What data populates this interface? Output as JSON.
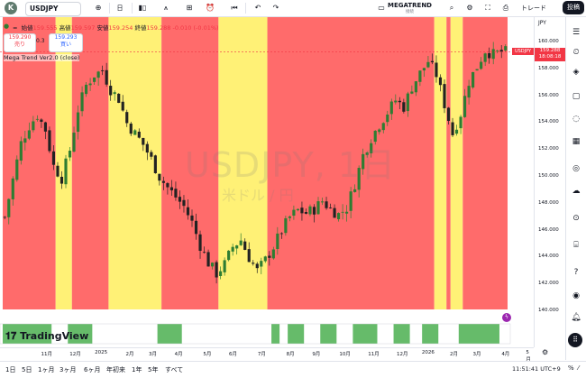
{
  "toolbar": {
    "logo_letter": "K",
    "symbol": "USDJPY",
    "timeframe": "日",
    "brand": "MEGATREND",
    "brand_sub": "接続",
    "trade": "トレード",
    "post": "投稿"
  },
  "legend": {
    "symbol_dot": "=",
    "open_label": "始値",
    "open": "159.555",
    "high_label": "高値",
    "high": "159.597",
    "low_label": "安値",
    "low": "159.254",
    "close_label": "終値",
    "close": "159.288",
    "change": "-0.010 (-0.01%)",
    "sell_price": "159.290",
    "sell_label": "売り",
    "spread": "0.3",
    "buy_price": "159.293",
    "buy_label": "買い",
    "indicator": "Mega Trend Ver2.0 (close)"
  },
  "watermark": {
    "main": "USDJPY, 1日",
    "sub": "米ドル / 円"
  },
  "price_axis": {
    "currency": "JPY",
    "ticks": [
      "160.000",
      "158.000",
      "156.000",
      "154.000",
      "152.000",
      "150.000",
      "148.000",
      "146.000",
      "144.000",
      "142.000",
      "140.000"
    ],
    "last_symbol": "USDJPY",
    "last_price": "159.288",
    "countdown": "18:08:18"
  },
  "time_axis": {
    "ticks": [
      "11月",
      "12月",
      "2025",
      "2月",
      "3月",
      "4月",
      "5月",
      "6月",
      "7月",
      "8月",
      "9月",
      "10月",
      "11月",
      "12月",
      "2026",
      "2月",
      "3月",
      "4月",
      "5月"
    ]
  },
  "tv_logo": "TradingView",
  "bottom": {
    "ranges": [
      "1日",
      "5日",
      "1ヶ月",
      "3ヶ月",
      "6ヶ月",
      "年初来",
      "1年",
      "5年",
      "すべて"
    ],
    "clock": "11:51:41 UTC+9"
  },
  "colors": {
    "bear_zone": "#ff6b6b",
    "bull_zone": "#fff176",
    "candle_up": "#2e7d32",
    "candle_down": "#222222",
    "lower_bar": "#66bb6a"
  },
  "chart_data": {
    "type": "candlestick",
    "series_name": "USDJPY",
    "x_labels": [
      "11月",
      "12月",
      "2025",
      "2月",
      "3月",
      "4月",
      "5月",
      "6月",
      "7月",
      "8月",
      "9月",
      "10月",
      "11月",
      "12月",
      "2026",
      "2月",
      "3月",
      "4月",
      "5月"
    ],
    "ylim": [
      139,
      161
    ],
    "close_path": [
      [
        0,
        147.0
      ],
      [
        2,
        149.8
      ],
      [
        4,
        152.5
      ],
      [
        6,
        153.8
      ],
      [
        8,
        154.6
      ],
      [
        10,
        153.5
      ],
      [
        12,
        150.8
      ],
      [
        14,
        149.9
      ],
      [
        16,
        152.0
      ],
      [
        18,
        155.0
      ],
      [
        20,
        156.8
      ],
      [
        22,
        157.6
      ],
      [
        24,
        157.9
      ],
      [
        26,
        156.5
      ],
      [
        28,
        155.8
      ],
      [
        30,
        154.0
      ],
      [
        32,
        153.2
      ],
      [
        34,
        152.4
      ],
      [
        36,
        151.3
      ],
      [
        38,
        150.0
      ],
      [
        40,
        149.2
      ],
      [
        42,
        148.5
      ],
      [
        44,
        147.8
      ],
      [
        46,
        146.6
      ],
      [
        48,
        144.9
      ],
      [
        50,
        143.6
      ],
      [
        52,
        142.8
      ],
      [
        54,
        143.5
      ],
      [
        56,
        144.8
      ],
      [
        58,
        145.3
      ],
      [
        60,
        144.0
      ],
      [
        62,
        143.0
      ],
      [
        64,
        143.8
      ],
      [
        66,
        144.8
      ],
      [
        68,
        146.0
      ],
      [
        70,
        147.0
      ],
      [
        72,
        147.5
      ],
      [
        74,
        147.3
      ],
      [
        76,
        147.6
      ],
      [
        78,
        148.2
      ],
      [
        80,
        147.6
      ],
      [
        82,
        147.2
      ],
      [
        84,
        147.7
      ],
      [
        86,
        149.5
      ],
      [
        88,
        151.6
      ],
      [
        90,
        152.9
      ],
      [
        92,
        153.9
      ],
      [
        94,
        154.8
      ],
      [
        96,
        155.7
      ],
      [
        98,
        155.2
      ],
      [
        100,
        156.7
      ],
      [
        102,
        157.7
      ],
      [
        104,
        158.6
      ],
      [
        106,
        157.6
      ],
      [
        108,
        155.4
      ],
      [
        110,
        153.2
      ],
      [
        112,
        154.7
      ],
      [
        114,
        157.1
      ],
      [
        116,
        158.2
      ],
      [
        118,
        159.4
      ],
      [
        120,
        159.1
      ],
      [
        122,
        159.3
      ]
    ],
    "zones": [
      {
        "from": 0,
        "to": 13,
        "trend": "bear"
      },
      {
        "from": 13,
        "to": 17,
        "trend": "bull"
      },
      {
        "from": 17,
        "to": 26,
        "trend": "bear"
      },
      {
        "from": 26,
        "to": 39,
        "trend": "bull"
      },
      {
        "from": 39,
        "to": 53,
        "trend": "bear"
      },
      {
        "from": 53,
        "to": 65,
        "trend": "bull"
      },
      {
        "from": 65,
        "to": 106,
        "trend": "bear"
      },
      {
        "from": 106,
        "to": 109,
        "trend": "bull"
      },
      {
        "from": 109,
        "to": 110,
        "trend": "bear"
      },
      {
        "from": 110,
        "to": 113,
        "trend": "bull"
      },
      {
        "from": 113,
        "to": 124,
        "trend": "bear"
      }
    ]
  }
}
